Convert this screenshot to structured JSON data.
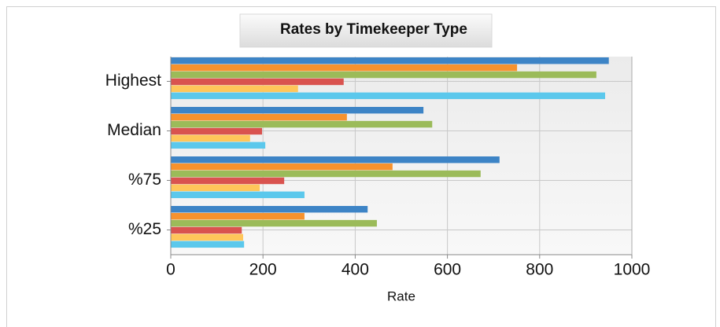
{
  "chart_data": {
    "type": "bar",
    "orientation": "horizontal",
    "title": "Rates by Timekeeper Type",
    "xlabel": "Rate",
    "categories": [
      "Highest",
      "Median",
      "%75",
      "%25"
    ],
    "series": [
      {
        "color": "#3d84c6",
        "values": [
          950,
          548,
          713,
          427
        ]
      },
      {
        "color": "#f7922d",
        "values": [
          751,
          382,
          481,
          290
        ]
      },
      {
        "color": "#9bbb59",
        "values": [
          923,
          567,
          672,
          447
        ]
      },
      {
        "color": "#d9534f",
        "values": [
          375,
          198,
          246,
          154
        ]
      },
      {
        "color": "#ffc65a",
        "values": [
          276,
          172,
          193,
          157
        ]
      },
      {
        "color": "#5bc8ec",
        "values": [
          942,
          205,
          290,
          159
        ]
      }
    ],
    "xlim": [
      0,
      1000
    ],
    "xticks": [
      0,
      200,
      400,
      600,
      800,
      1000
    ],
    "grid": true
  }
}
